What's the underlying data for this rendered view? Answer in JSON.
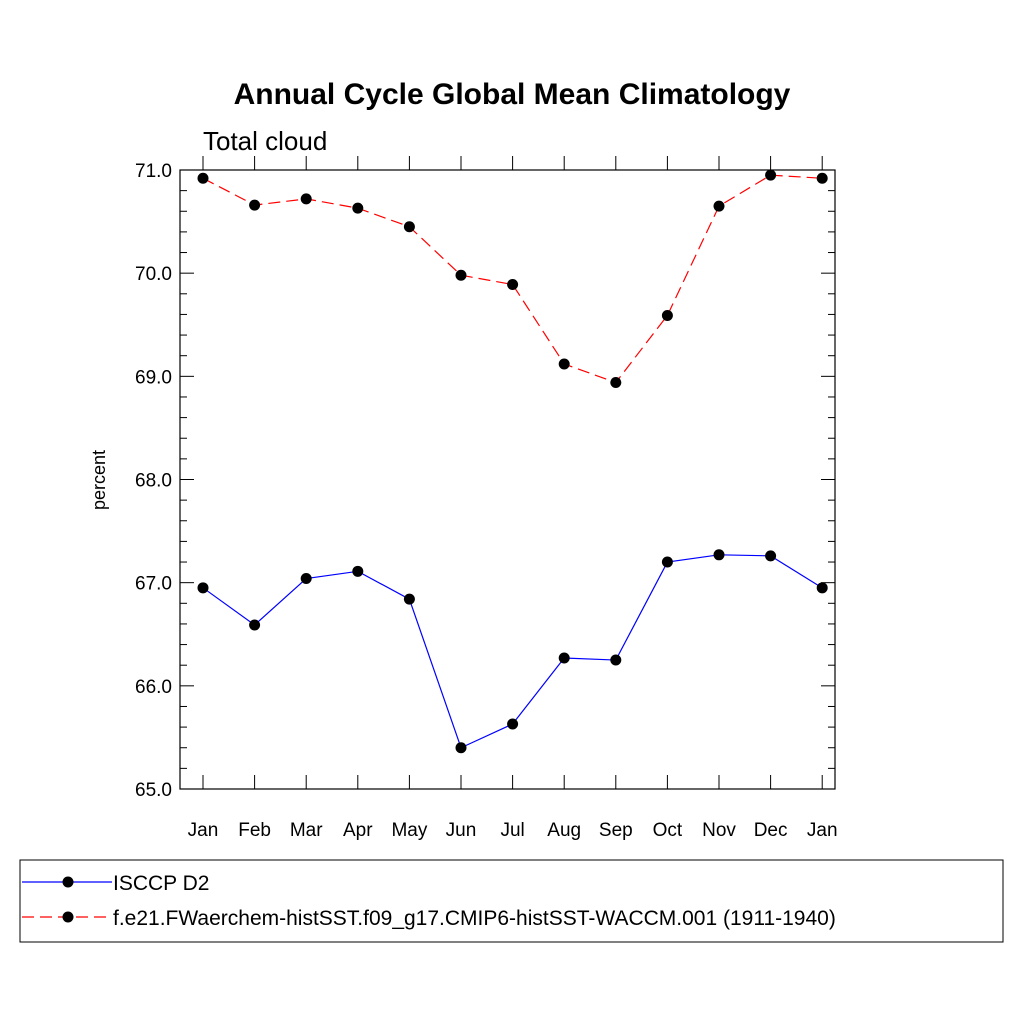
{
  "chart_data": {
    "type": "line",
    "title": "Annual Cycle Global Mean Climatology",
    "subtitle": "Total cloud",
    "xlabel": "",
    "ylabel": "percent",
    "categories": [
      "Jan",
      "Feb",
      "Mar",
      "Apr",
      "May",
      "Jun",
      "Jul",
      "Aug",
      "Sep",
      "Oct",
      "Nov",
      "Dec",
      "Jan"
    ],
    "ylim": [
      65.0,
      71.0
    ],
    "yticks": [
      "65.0",
      "66.0",
      "67.0",
      "68.0",
      "69.0",
      "70.0",
      "71.0"
    ],
    "series": [
      {
        "name": "ISCCP D2",
        "color": "#0000ff",
        "line_style": "solid",
        "marker": "filled-circle",
        "values": [
          66.95,
          66.59,
          67.04,
          67.11,
          66.84,
          65.4,
          65.63,
          66.27,
          66.25,
          67.2,
          67.27,
          67.26,
          66.95
        ]
      },
      {
        "name": "f.e21.FWaerchem-histSST.f09_g17.CMIP6-histSST-WACCM.001 (1911-1940)",
        "color": "#ff0000",
        "line_style": "dashed",
        "marker": "filled-circle",
        "values": [
          70.92,
          70.66,
          70.72,
          70.63,
          70.45,
          69.98,
          69.89,
          69.12,
          68.94,
          69.59,
          70.65,
          70.95,
          70.92
        ]
      }
    ],
    "legend_position": "bottom"
  }
}
